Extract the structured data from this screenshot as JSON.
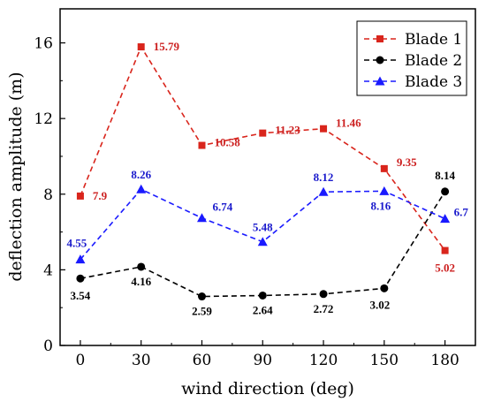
{
  "chart_data": {
    "type": "line",
    "xlabel": "wind direction (deg)",
    "ylabel": "deflection amplitude (m)",
    "x": [
      0,
      30,
      60,
      90,
      120,
      150,
      180
    ],
    "xlim": [
      -10,
      195
    ],
    "ylim": [
      0,
      17.8
    ],
    "xticks": [
      "0",
      "30",
      "60",
      "90",
      "120",
      "150",
      "180"
    ],
    "yticks": [
      "0",
      "4",
      "8",
      "12",
      "16"
    ],
    "grid": false,
    "legend_position": "top-right",
    "series": [
      {
        "name": "Blade 1",
        "color": "#d9251c",
        "marker": "square",
        "label_color": "#cc1f1f",
        "values": [
          7.9,
          15.79,
          10.58,
          11.23,
          11.46,
          9.35,
          5.02
        ],
        "labels": [
          "7.9",
          "15.79",
          "10.58",
          "11.23",
          "11.46",
          "9.35",
          "5.02"
        ]
      },
      {
        "name": "Blade 2",
        "color": "#000000",
        "marker": "circle",
        "label_color": "#000000",
        "values": [
          3.54,
          4.16,
          2.59,
          2.64,
          2.72,
          3.02,
          8.14
        ],
        "labels": [
          "3.54",
          "4.16",
          "2.59",
          "2.64",
          "2.72",
          "3.02",
          "8.14"
        ]
      },
      {
        "name": "Blade 3",
        "color": "#1a1aff",
        "marker": "triangle",
        "label_color": "#1a1acc",
        "values": [
          4.55,
          8.26,
          6.74,
          5.48,
          8.12,
          8.16,
          6.7
        ],
        "labels": [
          "4.55",
          "8.26",
          "6.74",
          "5.48",
          "8.12",
          "8.16",
          "6.7"
        ]
      }
    ]
  }
}
